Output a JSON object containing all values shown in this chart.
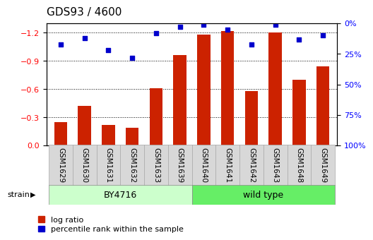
{
  "title": "GDS93 / 4600",
  "samples": [
    "GSM1629",
    "GSM1630",
    "GSM1631",
    "GSM1632",
    "GSM1633",
    "GSM1639",
    "GSM1640",
    "GSM1641",
    "GSM1642",
    "GSM1643",
    "GSM1648",
    "GSM1649"
  ],
  "log_ratio": [
    -0.25,
    -0.42,
    -0.22,
    -0.19,
    -0.61,
    -0.96,
    -1.18,
    -1.22,
    -0.58,
    -1.2,
    -0.7,
    -0.84
  ],
  "percentile_rank": [
    17,
    12,
    22,
    28,
    8,
    3,
    1,
    5,
    17,
    1,
    13,
    10
  ],
  "strain_groups": [
    {
      "label": "BY4716",
      "start": 0,
      "end": 5,
      "color": "#ccffcc"
    },
    {
      "label": "wild type",
      "start": 6,
      "end": 11,
      "color": "#66ee66"
    }
  ],
  "ylim_left": [
    0.0,
    -1.3
  ],
  "ylim_right": [
    100,
    0
  ],
  "yticks_left": [
    0.0,
    -0.3,
    -0.6,
    -0.9,
    -1.2
  ],
  "yticks_right": [
    100,
    75,
    50,
    25,
    0
  ],
  "ytick_labels_right": [
    "100%",
    "75%",
    "50%",
    "25%",
    "0%"
  ],
  "bar_color_red": "#cc2200",
  "bar_color_blue": "#0000cc",
  "bar_width": 0.55,
  "tick_label_fontsize": 7.5,
  "title_fontsize": 11,
  "legend_fontsize": 8,
  "strain_label_fontsize": 9
}
